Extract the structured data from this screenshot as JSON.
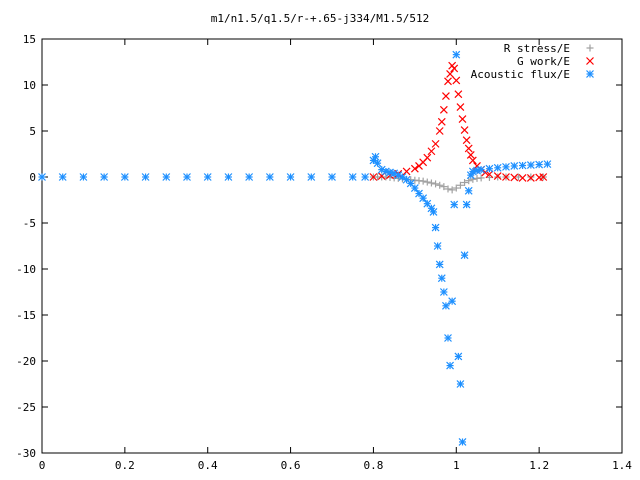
{
  "chart_data": {
    "type": "scatter",
    "title": "m1/n1.5/q1.5/r-+.65-j334/M1.5/512",
    "xlabel": "",
    "ylabel": "",
    "xlim": [
      0,
      1.4
    ],
    "ylim": [
      -30,
      15
    ],
    "xticks": [
      "0",
      "0.2",
      "0.4",
      "0.6",
      "0.8",
      "1",
      "1.2",
      "1.4"
    ],
    "yticks": [
      "15",
      "10",
      "5",
      "0",
      "-5",
      "-10",
      "-15",
      "-20",
      "-25",
      "-30"
    ],
    "grid": false,
    "legend_position": "top-right",
    "series": [
      {
        "name": "R stress/E",
        "marker": "plus",
        "color": "#a0a0a0",
        "points": [
          [
            0.8,
            0.0
          ],
          [
            0.81,
            0.0
          ],
          [
            0.82,
            0.0
          ],
          [
            0.83,
            0.0
          ],
          [
            0.84,
            -0.05
          ],
          [
            0.85,
            -0.1
          ],
          [
            0.86,
            -0.15
          ],
          [
            0.87,
            -0.2
          ],
          [
            0.88,
            -0.25
          ],
          [
            0.89,
            -0.3
          ],
          [
            0.9,
            -0.35
          ],
          [
            0.91,
            -0.4
          ],
          [
            0.92,
            -0.45
          ],
          [
            0.93,
            -0.55
          ],
          [
            0.94,
            -0.65
          ],
          [
            0.95,
            -0.75
          ],
          [
            0.96,
            -0.9
          ],
          [
            0.97,
            -1.05
          ],
          [
            0.98,
            -1.3
          ],
          [
            0.99,
            -1.4
          ],
          [
            1.0,
            -1.2
          ],
          [
            1.01,
            -0.9
          ],
          [
            1.02,
            -0.6
          ],
          [
            1.03,
            -0.4
          ],
          [
            1.04,
            -0.25
          ],
          [
            1.05,
            -0.15
          ],
          [
            1.06,
            -0.1
          ],
          [
            1.08,
            -0.05
          ],
          [
            1.1,
            0.0
          ],
          [
            1.12,
            0.0
          ],
          [
            1.15,
            0.0
          ],
          [
            1.18,
            0.0
          ],
          [
            1.21,
            0.0
          ]
        ]
      },
      {
        "name": "G work/E",
        "marker": "cross",
        "color": "#ff0000",
        "points": [
          [
            0.8,
            0.0
          ],
          [
            0.82,
            0.1
          ],
          [
            0.84,
            0.2
          ],
          [
            0.86,
            0.35
          ],
          [
            0.88,
            0.6
          ],
          [
            0.9,
            0.9
          ],
          [
            0.91,
            1.2
          ],
          [
            0.92,
            1.6
          ],
          [
            0.93,
            2.1
          ],
          [
            0.94,
            2.8
          ],
          [
            0.95,
            3.6
          ],
          [
            0.96,
            5.0
          ],
          [
            0.965,
            6.0
          ],
          [
            0.97,
            7.3
          ],
          [
            0.975,
            8.8
          ],
          [
            0.98,
            10.4
          ],
          [
            0.985,
            11.2
          ],
          [
            0.99,
            12.1
          ],
          [
            0.995,
            11.8
          ],
          [
            1.0,
            10.5
          ],
          [
            1.005,
            9.0
          ],
          [
            1.01,
            7.6
          ],
          [
            1.015,
            6.3
          ],
          [
            1.02,
            5.1
          ],
          [
            1.025,
            4.0
          ],
          [
            1.03,
            3.1
          ],
          [
            1.035,
            2.4
          ],
          [
            1.04,
            1.8
          ],
          [
            1.05,
            1.2
          ],
          [
            1.06,
            0.8
          ],
          [
            1.07,
            0.5
          ],
          [
            1.08,
            0.3
          ],
          [
            1.1,
            0.1
          ],
          [
            1.12,
            0.0
          ],
          [
            1.14,
            -0.05
          ],
          [
            1.16,
            -0.1
          ],
          [
            1.18,
            -0.1
          ],
          [
            1.2,
            -0.05
          ],
          [
            1.21,
            0.0
          ]
        ]
      },
      {
        "name": "Acoustic flux/E",
        "marker": "star",
        "color": "#1e90ff",
        "points": [
          [
            0.0,
            0.0
          ],
          [
            0.05,
            0.0
          ],
          [
            0.1,
            0.0
          ],
          [
            0.15,
            0.0
          ],
          [
            0.2,
            0.0
          ],
          [
            0.25,
            0.0
          ],
          [
            0.3,
            0.0
          ],
          [
            0.35,
            0.0
          ],
          [
            0.4,
            0.0
          ],
          [
            0.45,
            0.0
          ],
          [
            0.5,
            0.0
          ],
          [
            0.55,
            0.0
          ],
          [
            0.6,
            0.0
          ],
          [
            0.65,
            0.0
          ],
          [
            0.7,
            0.0
          ],
          [
            0.75,
            0.0
          ],
          [
            0.78,
            0.0
          ],
          [
            0.8,
            1.8
          ],
          [
            0.805,
            2.2
          ],
          [
            0.81,
            1.5
          ],
          [
            0.82,
            0.8
          ],
          [
            0.83,
            0.6
          ],
          [
            0.84,
            0.5
          ],
          [
            0.85,
            0.4
          ],
          [
            0.86,
            0.2
          ],
          [
            0.87,
            0.0
          ],
          [
            0.88,
            -0.3
          ],
          [
            0.89,
            -0.7
          ],
          [
            0.9,
            -1.2
          ],
          [
            0.91,
            -1.8
          ],
          [
            0.92,
            -2.3
          ],
          [
            0.93,
            -2.9
          ],
          [
            0.94,
            -3.4
          ],
          [
            0.945,
            -3.8
          ],
          [
            0.95,
            -5.5
          ],
          [
            0.955,
            -7.5
          ],
          [
            0.96,
            -9.5
          ],
          [
            0.965,
            -11.0
          ],
          [
            0.97,
            -12.5
          ],
          [
            0.975,
            -14.0
          ],
          [
            0.98,
            -17.5
          ],
          [
            0.985,
            -20.5
          ],
          [
            0.99,
            -13.5
          ],
          [
            0.995,
            -3.0
          ],
          [
            1.0,
            13.3
          ],
          [
            1.005,
            -19.5
          ],
          [
            1.01,
            -22.5
          ],
          [
            1.015,
            -28.8
          ],
          [
            1.02,
            -8.5
          ],
          [
            1.025,
            -3.0
          ],
          [
            1.03,
            -1.5
          ],
          [
            1.035,
            0.2
          ],
          [
            1.04,
            0.6
          ],
          [
            1.05,
            0.7
          ],
          [
            1.06,
            0.8
          ],
          [
            1.08,
            0.9
          ],
          [
            1.1,
            1.0
          ],
          [
            1.12,
            1.1
          ],
          [
            1.14,
            1.2
          ],
          [
            1.16,
            1.25
          ],
          [
            1.18,
            1.3
          ],
          [
            1.2,
            1.35
          ],
          [
            1.22,
            1.4
          ]
        ]
      }
    ]
  }
}
